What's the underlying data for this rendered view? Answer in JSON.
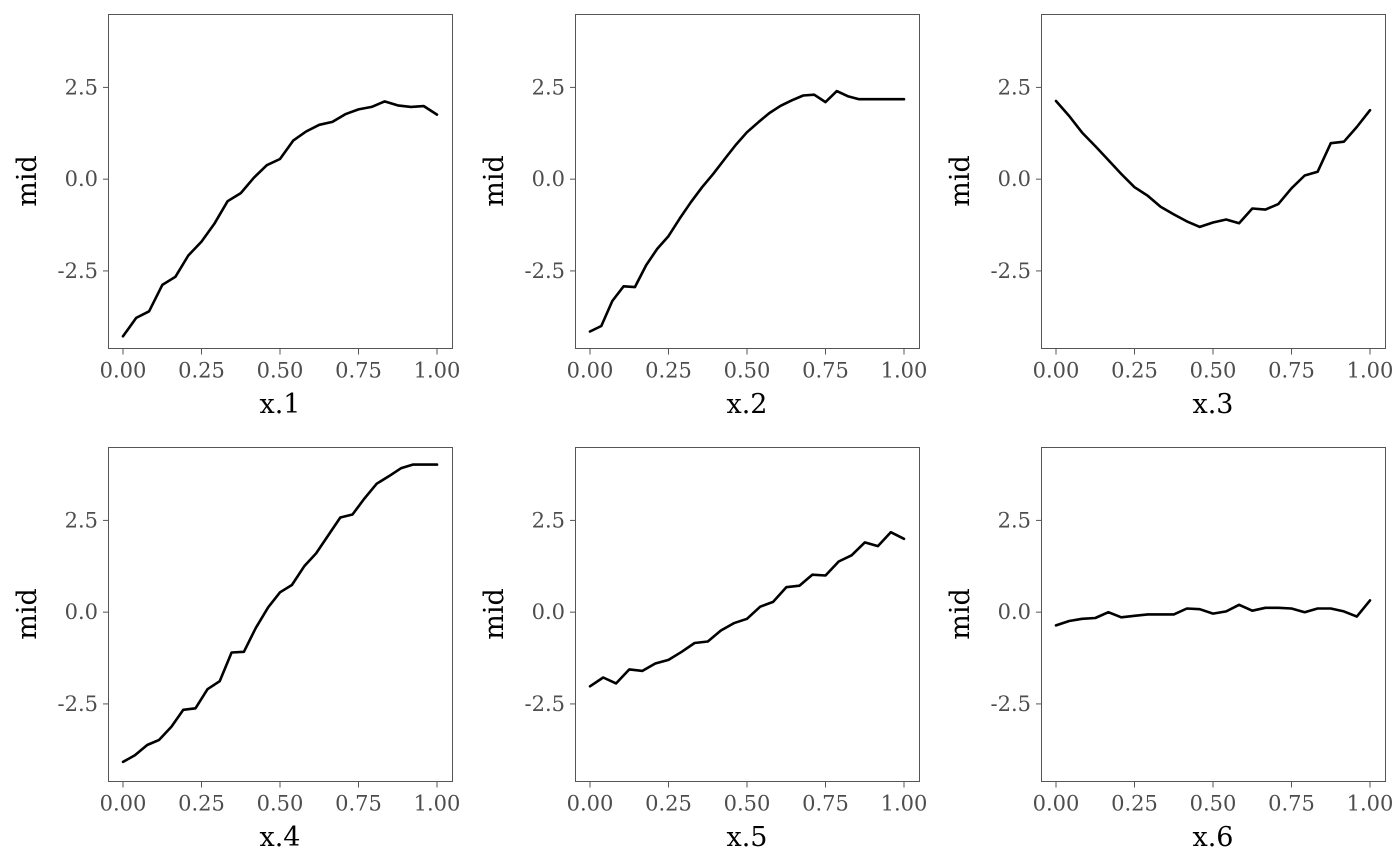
{
  "chart_data": [
    {
      "type": "line",
      "xlabel": "x.1",
      "ylabel": "mid",
      "xlim": [
        0,
        1
      ],
      "ylim": [
        -4.6,
        4.5
      ],
      "xticks": [
        "0.00",
        "0.25",
        "0.50",
        "0.75",
        "1.00"
      ],
      "yticks": [
        "2.5",
        "0.0",
        "-2.5"
      ],
      "grid": false,
      "x": [
        0.0,
        0.042,
        0.083,
        0.125,
        0.167,
        0.208,
        0.25,
        0.292,
        0.333,
        0.375,
        0.417,
        0.458,
        0.5,
        0.542,
        0.583,
        0.625,
        0.667,
        0.708,
        0.75,
        0.792,
        0.833,
        0.875,
        0.917,
        0.958,
        1.0
      ],
      "y": [
        -4.28,
        -3.78,
        -3.6,
        -2.88,
        -2.66,
        -2.08,
        -1.7,
        -1.2,
        -0.6,
        -0.38,
        0.04,
        0.38,
        0.55,
        1.05,
        1.3,
        1.48,
        1.56,
        1.77,
        1.9,
        1.97,
        2.12,
        2.01,
        1.97,
        1.99,
        1.76
      ]
    },
    {
      "type": "line",
      "xlabel": "x.2",
      "ylabel": "mid",
      "xlim": [
        0,
        1
      ],
      "ylim": [
        -4.6,
        4.5
      ],
      "xticks": [
        "0.00",
        "0.25",
        "0.50",
        "0.75",
        "1.00"
      ],
      "yticks": [
        "2.5",
        "0.0",
        "-2.5"
      ],
      "grid": false,
      "x": [
        0.0,
        0.036,
        0.071,
        0.107,
        0.143,
        0.179,
        0.214,
        0.25,
        0.286,
        0.321,
        0.357,
        0.393,
        0.429,
        0.464,
        0.5,
        0.536,
        0.571,
        0.607,
        0.643,
        0.679,
        0.714,
        0.75,
        0.786,
        0.821,
        0.857,
        0.893,
        0.929,
        0.964,
        1.0
      ],
      "y": [
        -4.15,
        -4.0,
        -3.32,
        -2.92,
        -2.94,
        -2.34,
        -1.9,
        -1.55,
        -1.07,
        -0.63,
        -0.22,
        0.15,
        0.55,
        0.93,
        1.28,
        1.55,
        1.8,
        2.0,
        2.15,
        2.28,
        2.3,
        2.1,
        2.4,
        2.26,
        2.18,
        2.18,
        2.18,
        2.18,
        2.18
      ]
    },
    {
      "type": "line",
      "xlabel": "x.3",
      "ylabel": "mid",
      "xlim": [
        0,
        1
      ],
      "ylim": [
        -4.6,
        4.5
      ],
      "xticks": [
        "0.00",
        "0.25",
        "0.50",
        "0.75",
        "1.00"
      ],
      "yticks": [
        "2.5",
        "0.0",
        "-2.5"
      ],
      "grid": false,
      "x": [
        0.0,
        0.042,
        0.083,
        0.125,
        0.167,
        0.208,
        0.25,
        0.292,
        0.333,
        0.375,
        0.417,
        0.458,
        0.5,
        0.542,
        0.583,
        0.625,
        0.667,
        0.708,
        0.75,
        0.792,
        0.833,
        0.875,
        0.917,
        0.958,
        1.0
      ],
      "y": [
        2.13,
        1.72,
        1.27,
        0.9,
        0.52,
        0.14,
        -0.22,
        -0.45,
        -0.75,
        -0.96,
        -1.15,
        -1.3,
        -1.18,
        -1.1,
        -1.2,
        -0.8,
        -0.83,
        -0.68,
        -0.25,
        0.1,
        0.2,
        0.98,
        1.02,
        1.42,
        1.88
      ]
    },
    {
      "type": "line",
      "xlabel": "x.4",
      "ylabel": "mid",
      "xlim": [
        0,
        1
      ],
      "ylim": [
        -4.6,
        4.5
      ],
      "xticks": [
        "0.00",
        "0.25",
        "0.50",
        "0.75",
        "1.00"
      ],
      "yticks": [
        "2.5",
        "0.0",
        "-2.5"
      ],
      "grid": false,
      "x": [
        0.0,
        0.038,
        0.077,
        0.115,
        0.154,
        0.192,
        0.231,
        0.269,
        0.308,
        0.346,
        0.385,
        0.423,
        0.462,
        0.5,
        0.538,
        0.577,
        0.615,
        0.654,
        0.692,
        0.731,
        0.769,
        0.808,
        0.846,
        0.885,
        0.923,
        0.962,
        1.0
      ],
      "y": [
        -4.08,
        -3.9,
        -3.62,
        -3.48,
        -3.12,
        -2.66,
        -2.62,
        -2.1,
        -1.88,
        -1.1,
        -1.08,
        -0.43,
        0.13,
        0.54,
        0.74,
        1.25,
        1.6,
        2.1,
        2.58,
        2.66,
        3.1,
        3.5,
        3.7,
        3.92,
        4.02,
        4.02,
        4.02
      ]
    },
    {
      "type": "line",
      "xlabel": "x.5",
      "ylabel": "mid",
      "xlim": [
        0,
        1
      ],
      "ylim": [
        -4.6,
        4.5
      ],
      "xticks": [
        "0.00",
        "0.25",
        "0.50",
        "0.75",
        "1.00"
      ],
      "yticks": [
        "2.5",
        "0.0",
        "-2.5"
      ],
      "grid": false,
      "x": [
        0.0,
        0.042,
        0.083,
        0.125,
        0.167,
        0.208,
        0.25,
        0.292,
        0.333,
        0.375,
        0.417,
        0.458,
        0.5,
        0.542,
        0.583,
        0.625,
        0.667,
        0.708,
        0.75,
        0.792,
        0.833,
        0.875,
        0.917,
        0.958,
        1.0
      ],
      "y": [
        -2.02,
        -1.78,
        -1.94,
        -1.56,
        -1.6,
        -1.4,
        -1.3,
        -1.08,
        -0.84,
        -0.8,
        -0.5,
        -0.3,
        -0.18,
        0.15,
        0.28,
        0.68,
        0.72,
        1.02,
        1.0,
        1.38,
        1.55,
        1.9,
        1.8,
        2.18,
        2.0
      ]
    },
    {
      "type": "line",
      "xlabel": "x.6",
      "ylabel": "mid",
      "xlim": [
        0,
        1
      ],
      "ylim": [
        -4.6,
        4.5
      ],
      "xticks": [
        "0.00",
        "0.25",
        "0.50",
        "0.75",
        "1.00"
      ],
      "yticks": [
        "2.5",
        "0.0",
        "-2.5"
      ],
      "grid": false,
      "x": [
        0.0,
        0.042,
        0.083,
        0.125,
        0.167,
        0.208,
        0.25,
        0.292,
        0.333,
        0.375,
        0.417,
        0.458,
        0.5,
        0.542,
        0.583,
        0.625,
        0.667,
        0.708,
        0.75,
        0.792,
        0.833,
        0.875,
        0.917,
        0.958,
        1.0
      ],
      "y": [
        -0.36,
        -0.24,
        -0.18,
        -0.16,
        0.0,
        -0.14,
        -0.1,
        -0.06,
        -0.06,
        -0.06,
        0.1,
        0.08,
        -0.04,
        0.02,
        0.2,
        0.04,
        0.12,
        0.12,
        0.1,
        0.0,
        0.1,
        0.1,
        0.02,
        -0.12,
        0.32
      ]
    }
  ]
}
